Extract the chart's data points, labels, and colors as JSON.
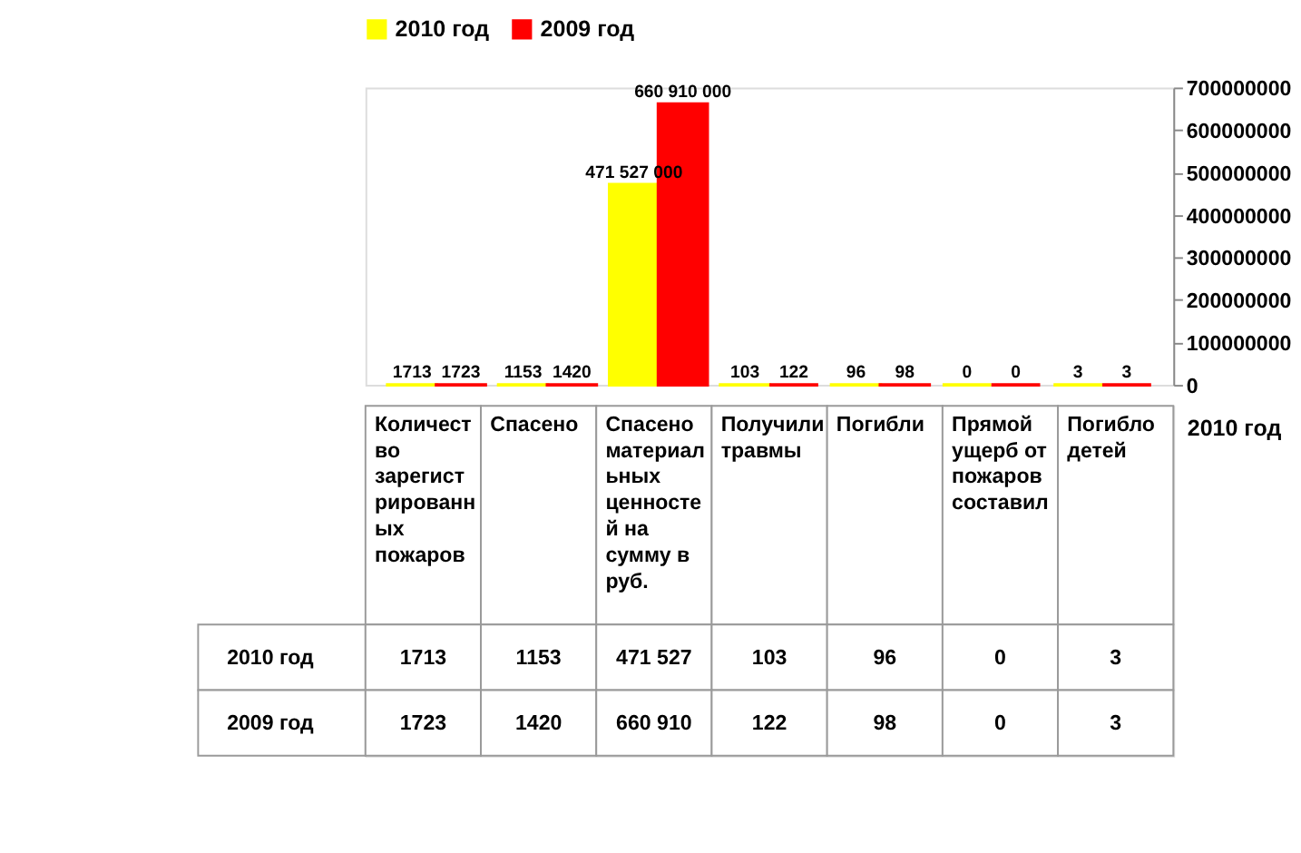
{
  "chart_data": {
    "type": "bar",
    "categories": [
      "Количество зарегистрированных пожаров",
      "Спасено",
      "Спасено материальных ценностей на сумму в руб.",
      "Получили травмы",
      "Погибли",
      "Прямой ущерб от пожаров составил",
      "Погибло детей"
    ],
    "series": [
      {
        "name": "2010 год",
        "color": "#ffff00",
        "values": [
          1713,
          1153,
          471527000,
          103,
          96,
          0,
          3
        ],
        "value_labels": [
          "1713",
          "1153",
          "471 527 000",
          "103",
          "96",
          "0",
          "3"
        ]
      },
      {
        "name": "2009 год",
        "color": "#ff0000",
        "values": [
          1723,
          1420,
          660910000,
          122,
          98,
          0,
          3
        ],
        "value_labels": [
          "1723",
          "1420",
          "660 910 000",
          "122",
          "98",
          "0",
          "3"
        ]
      }
    ],
    "ylim": [
      0,
      700000000
    ],
    "yticks": [
      0,
      100000000,
      200000000,
      300000000,
      400000000,
      500000000,
      600000000,
      700000000
    ],
    "grid": false,
    "legend": "top",
    "annotations": [
      "471 527",
      "660 910"
    ]
  }
}
